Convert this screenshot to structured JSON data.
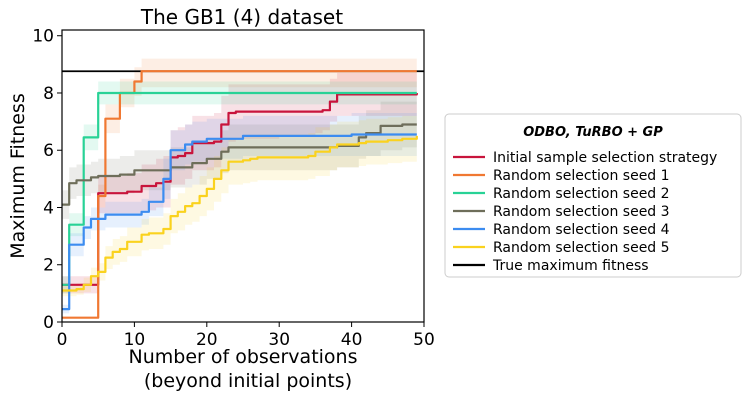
{
  "chart_data": {
    "type": "line",
    "title": "The GB1 (4) dataset",
    "xlabel": "Number of observations",
    "xlabel_line2": "(beyond initial points)",
    "ylabel": "Maximum Fitness",
    "xlim": [
      0,
      50
    ],
    "ylim": [
      0,
      10.2
    ],
    "xticks": [
      "0",
      "10",
      "20",
      "30",
      "40",
      "50"
    ],
    "yticks": [
      "0",
      "2",
      "4",
      "6",
      "8",
      "10"
    ],
    "legend_position": "outside-right",
    "legend_title": "ODBO, TuRBO + GP",
    "reference_line": {
      "name": "True maximum fitness",
      "y": 8.76,
      "color": "#000000"
    },
    "series": [
      {
        "name": "Initial sample selection strategy",
        "color": "#c8143c",
        "x": [
          0,
          2,
          3,
          4,
          5,
          6,
          7,
          8,
          9,
          10,
          11,
          12,
          13,
          14,
          15,
          16,
          17,
          18,
          19,
          20,
          21,
          22,
          23,
          24,
          25,
          26,
          30,
          35,
          36,
          37,
          38,
          40,
          45,
          49
        ],
        "y": [
          1.3,
          1.3,
          1.3,
          1.3,
          4.5,
          4.5,
          4.5,
          4.5,
          4.55,
          4.55,
          4.75,
          4.75,
          4.85,
          4.9,
          5.75,
          5.8,
          5.9,
          6.25,
          6.25,
          6.25,
          6.3,
          6.9,
          7.3,
          7.35,
          7.35,
          7.35,
          7.35,
          7.35,
          7.4,
          7.7,
          7.95,
          7.95,
          7.95,
          8.0
        ],
        "band_lower": [
          1.0,
          1.0,
          1.0,
          1.0,
          3.8,
          3.8,
          3.8,
          3.8,
          3.8,
          3.8,
          3.9,
          3.9,
          4.0,
          4.0,
          4.8,
          4.8,
          5.0,
          5.3,
          5.3,
          5.3,
          5.4,
          5.9,
          6.3,
          6.4,
          6.4,
          6.4,
          6.5,
          6.6,
          6.7,
          7.0,
          7.2,
          7.2,
          7.2,
          7.3
        ],
        "band_upper": [
          1.6,
          1.6,
          1.6,
          1.6,
          5.1,
          5.1,
          5.1,
          5.1,
          5.2,
          5.2,
          5.5,
          5.5,
          5.7,
          5.8,
          6.7,
          6.8,
          6.9,
          7.2,
          7.2,
          7.2,
          7.3,
          7.9,
          8.3,
          8.3,
          8.3,
          8.3,
          8.3,
          8.3,
          8.3,
          8.5,
          8.7,
          8.7,
          8.7,
          8.8
        ]
      },
      {
        "name": "Random selection seed 1",
        "color": "#f07832",
        "x": [
          0,
          1,
          2,
          3,
          4,
          5,
          6,
          7,
          8,
          9,
          10,
          11,
          15,
          20,
          30,
          40,
          49
        ],
        "y": [
          0.15,
          0.15,
          0.15,
          0.15,
          0.15,
          4.4,
          7.1,
          7.1,
          8.0,
          8.0,
          8.4,
          8.76,
          8.76,
          8.76,
          8.76,
          8.76,
          8.76
        ],
        "band_lower": [
          0.15,
          0.15,
          0.15,
          0.15,
          0.15,
          4.0,
          6.6,
          6.6,
          7.5,
          7.5,
          7.9,
          8.2,
          8.2,
          8.2,
          8.2,
          8.2,
          8.2
        ],
        "band_upper": [
          0.15,
          0.15,
          0.15,
          0.15,
          0.15,
          4.8,
          7.6,
          7.6,
          8.5,
          8.5,
          8.9,
          9.2,
          9.2,
          9.2,
          9.2,
          9.2,
          9.2
        ]
      },
      {
        "name": "Random selection seed 2",
        "color": "#28d296",
        "x": [
          0,
          1,
          2,
          3,
          4,
          5,
          10,
          20,
          30,
          40,
          49
        ],
        "y": [
          1.3,
          3.4,
          3.4,
          6.45,
          6.45,
          8.0,
          8.0,
          8.0,
          8.0,
          8.0,
          8.0
        ],
        "band_lower": [
          1.0,
          3.0,
          3.0,
          6.0,
          6.0,
          7.6,
          7.6,
          7.6,
          7.6,
          7.6,
          7.6
        ],
        "band_upper": [
          1.6,
          3.8,
          3.8,
          6.9,
          6.9,
          8.4,
          8.4,
          8.4,
          8.4,
          8.4,
          8.4
        ]
      },
      {
        "name": "Random selection seed 3",
        "color": "#6e6e5a",
        "x": [
          0,
          1,
          2,
          3,
          4,
          5,
          6,
          7,
          8,
          9,
          10,
          14,
          15,
          16,
          18,
          19,
          20,
          21,
          22,
          23,
          24,
          30,
          35,
          36,
          38,
          40,
          41,
          42,
          43,
          44,
          45,
          47,
          49
        ],
        "y": [
          4.1,
          4.85,
          4.95,
          4.95,
          5.05,
          5.1,
          5.1,
          5.1,
          5.15,
          5.15,
          5.3,
          5.3,
          5.4,
          5.4,
          5.55,
          5.55,
          5.7,
          5.7,
          5.95,
          6.1,
          6.1,
          6.1,
          6.1,
          6.1,
          6.15,
          6.15,
          6.45,
          6.6,
          6.6,
          6.85,
          6.85,
          6.9,
          6.9
        ],
        "band_lower": [
          3.6,
          4.3,
          4.4,
          4.4,
          4.5,
          4.5,
          4.5,
          4.5,
          4.5,
          4.5,
          4.6,
          4.6,
          4.7,
          4.7,
          4.8,
          4.8,
          5.0,
          5.0,
          5.2,
          5.3,
          5.3,
          5.3,
          5.3,
          5.3,
          5.4,
          5.4,
          5.7,
          5.8,
          5.8,
          6.0,
          6.0,
          6.1,
          6.1
        ],
        "band_upper": [
          4.6,
          5.4,
          5.5,
          5.5,
          5.6,
          5.7,
          5.7,
          5.7,
          5.8,
          5.8,
          6.0,
          6.0,
          6.1,
          6.1,
          6.3,
          6.3,
          6.4,
          6.4,
          6.7,
          6.9,
          6.9,
          6.9,
          6.9,
          6.9,
          6.9,
          6.9,
          7.2,
          7.4,
          7.4,
          7.7,
          7.7,
          7.7,
          7.7
        ]
      },
      {
        "name": "Random selection seed 4",
        "color": "#3c8cf0",
        "x": [
          0,
          1,
          2,
          3,
          4,
          5,
          6,
          10,
          11,
          12,
          13,
          14,
          15,
          16,
          17,
          18,
          19,
          20,
          21,
          25,
          30,
          35,
          40,
          45,
          49
        ],
        "y": [
          0.45,
          2.7,
          2.7,
          3.3,
          3.6,
          3.6,
          3.75,
          3.75,
          3.85,
          4.2,
          4.2,
          5.0,
          6.0,
          6.0,
          6.2,
          6.3,
          6.3,
          6.4,
          6.4,
          6.5,
          6.5,
          6.5,
          6.55,
          6.55,
          6.55
        ],
        "band_lower": [
          0.3,
          2.3,
          2.3,
          2.9,
          3.2,
          3.2,
          3.3,
          3.3,
          3.4,
          3.7,
          3.7,
          4.3,
          5.3,
          5.3,
          5.5,
          5.6,
          5.6,
          5.7,
          5.7,
          5.8,
          5.8,
          5.8,
          5.8,
          5.8,
          5.8
        ],
        "band_upper": [
          0.6,
          3.1,
          3.1,
          3.7,
          4.0,
          4.0,
          4.2,
          4.2,
          4.3,
          4.7,
          4.7,
          5.7,
          6.7,
          6.7,
          6.9,
          7.0,
          7.0,
          7.1,
          7.1,
          7.2,
          7.2,
          7.2,
          7.3,
          7.3,
          7.3
        ]
      },
      {
        "name": "Random selection seed 5",
        "color": "#fad21e",
        "x": [
          0,
          1,
          2,
          3,
          4,
          5,
          6,
          7,
          8,
          9,
          10,
          11,
          12,
          13,
          14,
          15,
          16,
          17,
          18,
          19,
          20,
          21,
          22,
          23,
          24,
          25,
          26,
          27,
          28,
          30,
          32,
          34,
          35,
          37,
          38,
          40,
          41,
          42,
          43,
          45,
          47,
          49
        ],
        "y": [
          1.1,
          1.1,
          1.15,
          1.3,
          1.6,
          1.75,
          2.25,
          2.45,
          2.55,
          2.8,
          2.8,
          3.05,
          3.1,
          3.1,
          3.25,
          3.7,
          3.85,
          4.05,
          4.15,
          4.4,
          4.65,
          5.0,
          5.3,
          5.6,
          5.6,
          5.65,
          5.7,
          5.75,
          5.75,
          5.75,
          5.75,
          5.8,
          5.95,
          6.1,
          6.2,
          6.2,
          6.25,
          6.3,
          6.3,
          6.35,
          6.4,
          6.5
        ],
        "band_lower": [
          0.9,
          0.9,
          0.95,
          1.05,
          1.3,
          1.45,
          1.85,
          2.0,
          2.1,
          2.3,
          2.3,
          2.5,
          2.55,
          2.55,
          2.7,
          3.1,
          3.2,
          3.4,
          3.5,
          3.7,
          3.9,
          4.2,
          4.5,
          4.8,
          4.8,
          4.85,
          4.9,
          4.95,
          4.95,
          4.95,
          4.95,
          5.0,
          5.1,
          5.3,
          5.4,
          5.4,
          5.45,
          5.5,
          5.5,
          5.55,
          5.6,
          5.7
        ],
        "band_upper": [
          1.3,
          1.3,
          1.35,
          1.55,
          1.9,
          2.05,
          2.65,
          2.9,
          3.0,
          3.3,
          3.3,
          3.6,
          3.65,
          3.65,
          3.8,
          4.3,
          4.5,
          4.7,
          4.8,
          5.1,
          5.4,
          5.8,
          6.1,
          6.4,
          6.4,
          6.45,
          6.5,
          6.55,
          6.55,
          6.55,
          6.55,
          6.6,
          6.8,
          6.9,
          7.0,
          7.0,
          7.05,
          7.1,
          7.1,
          7.15,
          7.2,
          7.3
        ]
      }
    ]
  }
}
